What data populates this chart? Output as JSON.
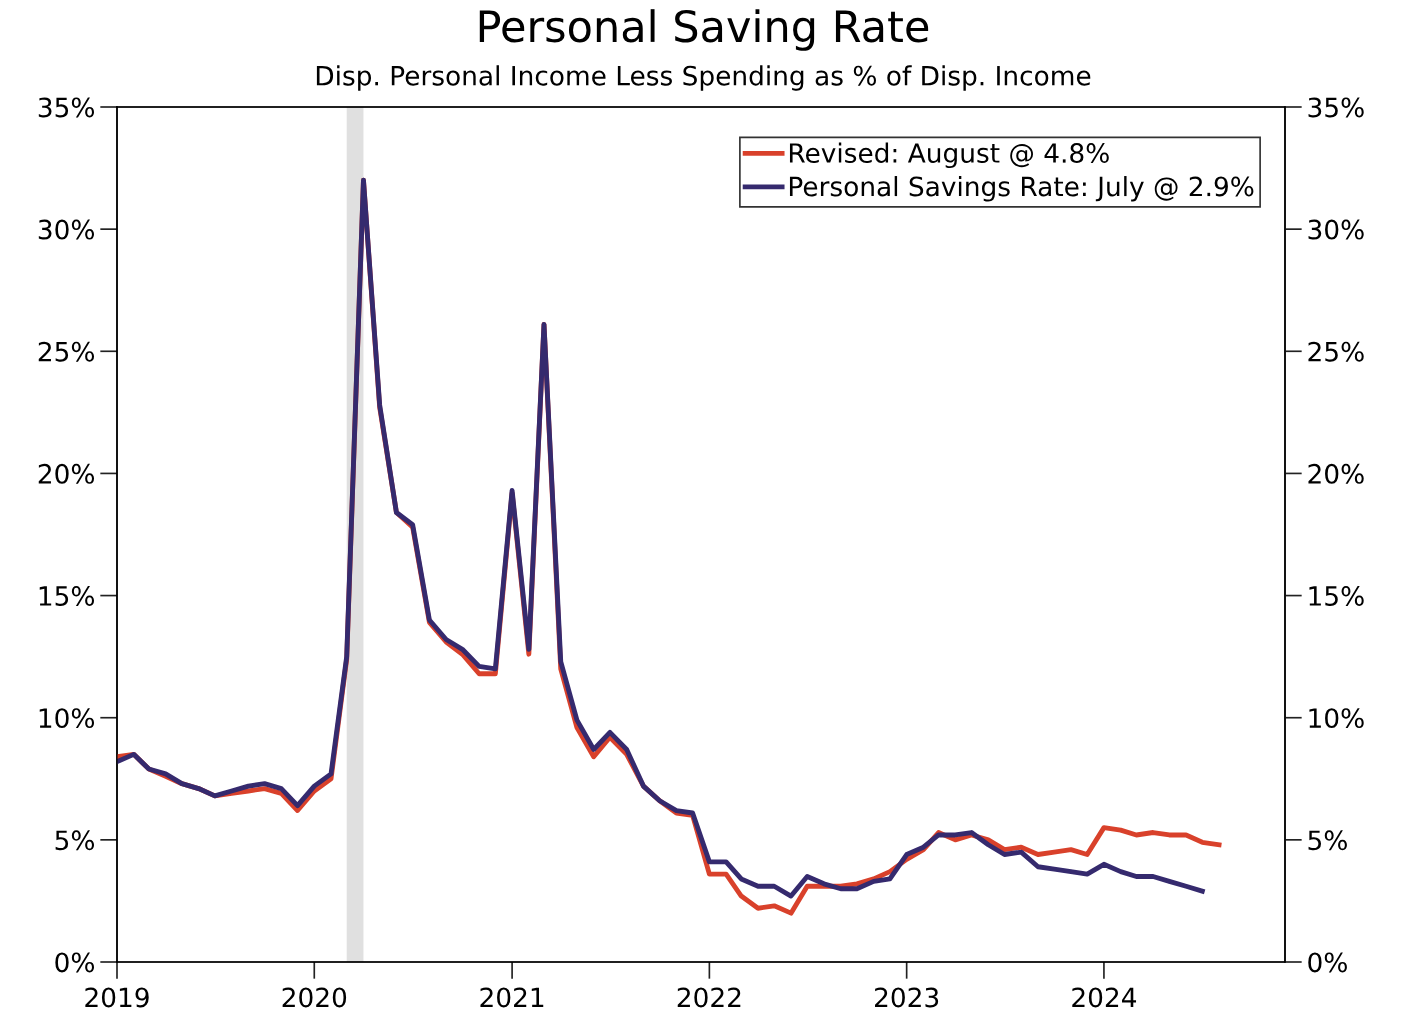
{
  "chart_data": {
    "type": "line",
    "title": "Personal Saving Rate",
    "subtitle": "Disp. Personal Income Less Spending as % of Disp. Income",
    "x": [
      "2019-01",
      "2019-02",
      "2019-03",
      "2019-04",
      "2019-05",
      "2019-06",
      "2019-07",
      "2019-08",
      "2019-09",
      "2019-10",
      "2019-11",
      "2019-12",
      "2020-01",
      "2020-02",
      "2020-03",
      "2020-04",
      "2020-05",
      "2020-06",
      "2020-07",
      "2020-08",
      "2020-09",
      "2020-10",
      "2020-11",
      "2020-12",
      "2021-01",
      "2021-02",
      "2021-03",
      "2021-04",
      "2021-05",
      "2021-06",
      "2021-07",
      "2021-08",
      "2021-09",
      "2021-10",
      "2021-11",
      "2021-12",
      "2022-01",
      "2022-02",
      "2022-03",
      "2022-04",
      "2022-05",
      "2022-06",
      "2022-07",
      "2022-08",
      "2022-09",
      "2022-10",
      "2022-11",
      "2022-12",
      "2023-01",
      "2023-02",
      "2023-03",
      "2023-04",
      "2023-05",
      "2023-06",
      "2023-07",
      "2023-08",
      "2023-09",
      "2023-10",
      "2023-11",
      "2023-12",
      "2024-01",
      "2024-02",
      "2024-03",
      "2024-04",
      "2024-05",
      "2024-06",
      "2024-07",
      "2024-08"
    ],
    "series": [
      {
        "name": "Revised: August @ 4.8%",
        "color": "#d9412b",
        "values": [
          8.4,
          8.5,
          7.9,
          7.6,
          7.3,
          7.1,
          6.8,
          6.9,
          7.0,
          7.1,
          6.9,
          6.2,
          7.0,
          7.5,
          12.4,
          32.0,
          22.7,
          18.4,
          17.8,
          13.9,
          13.1,
          12.6,
          11.8,
          11.8,
          19.2,
          12.6,
          26.1,
          12.0,
          9.6,
          8.4,
          9.2,
          8.5,
          7.2,
          6.6,
          6.1,
          6.0,
          3.6,
          3.6,
          2.7,
          2.2,
          2.3,
          2.0,
          3.1,
          3.1,
          3.1,
          3.2,
          3.4,
          3.7,
          4.2,
          4.6,
          5.3,
          5.0,
          5.2,
          5.0,
          4.6,
          4.7,
          4.4,
          4.5,
          4.6,
          4.4,
          5.5,
          5.4,
          5.2,
          5.3,
          5.2,
          5.2,
          4.9,
          4.8
        ]
      },
      {
        "name": "Personal Savings Rate: July @ 2.9%",
        "color": "#352a6e",
        "values": [
          8.2,
          8.5,
          7.9,
          7.7,
          7.3,
          7.1,
          6.8,
          7.0,
          7.2,
          7.3,
          7.1,
          6.4,
          7.2,
          7.7,
          12.5,
          32.0,
          22.8,
          18.4,
          17.9,
          14.0,
          13.2,
          12.8,
          12.1,
          12.0,
          19.3,
          12.8,
          26.1,
          12.3,
          9.9,
          8.7,
          9.4,
          8.7,
          7.2,
          6.6,
          6.2,
          6.1,
          4.1,
          4.1,
          3.4,
          3.1,
          3.1,
          2.7,
          3.5,
          3.2,
          3.0,
          3.0,
          3.3,
          3.4,
          4.4,
          4.7,
          5.2,
          5.2,
          5.3,
          4.8,
          4.4,
          4.5,
          3.9,
          3.8,
          3.7,
          3.6,
          4.0,
          3.7,
          3.5,
          3.5,
          3.3,
          3.1,
          2.9,
          null
        ]
      }
    ],
    "bands": [
      {
        "axis": "x",
        "from": "2020-03",
        "to": "2020-04",
        "color": "#e0e0e0"
      }
    ],
    "xlim": [
      "2019-01",
      "2024-12"
    ],
    "xticks": [
      {
        "value": "2019-01",
        "label": "2019"
      },
      {
        "value": "2020-01",
        "label": "2020"
      },
      {
        "value": "2021-01",
        "label": "2021"
      },
      {
        "value": "2022-01",
        "label": "2022"
      },
      {
        "value": "2023-01",
        "label": "2023"
      },
      {
        "value": "2024-01",
        "label": "2024"
      }
    ],
    "ylim": [
      0,
      35
    ],
    "yticks": [
      {
        "value": 0,
        "label": "0%"
      },
      {
        "value": 5,
        "label": "5%"
      },
      {
        "value": 10,
        "label": "10%"
      },
      {
        "value": 15,
        "label": "15%"
      },
      {
        "value": 20,
        "label": "20%"
      },
      {
        "value": 25,
        "label": "25%"
      },
      {
        "value": 30,
        "label": "30%"
      },
      {
        "value": 35,
        "label": "35%"
      }
    ],
    "y2lim": [
      0,
      35
    ],
    "y2ticks": [
      {
        "value": 0,
        "label": "0%"
      },
      {
        "value": 5,
        "label": "5%"
      },
      {
        "value": 10,
        "label": "10%"
      },
      {
        "value": 15,
        "label": "15%"
      },
      {
        "value": 20,
        "label": "20%"
      },
      {
        "value": 25,
        "label": "25%"
      },
      {
        "value": 30,
        "label": "30%"
      },
      {
        "value": 35,
        "label": "35%"
      }
    ],
    "legend": "top right",
    "grid": false,
    "marker": "none",
    "line_style": "solid"
  }
}
